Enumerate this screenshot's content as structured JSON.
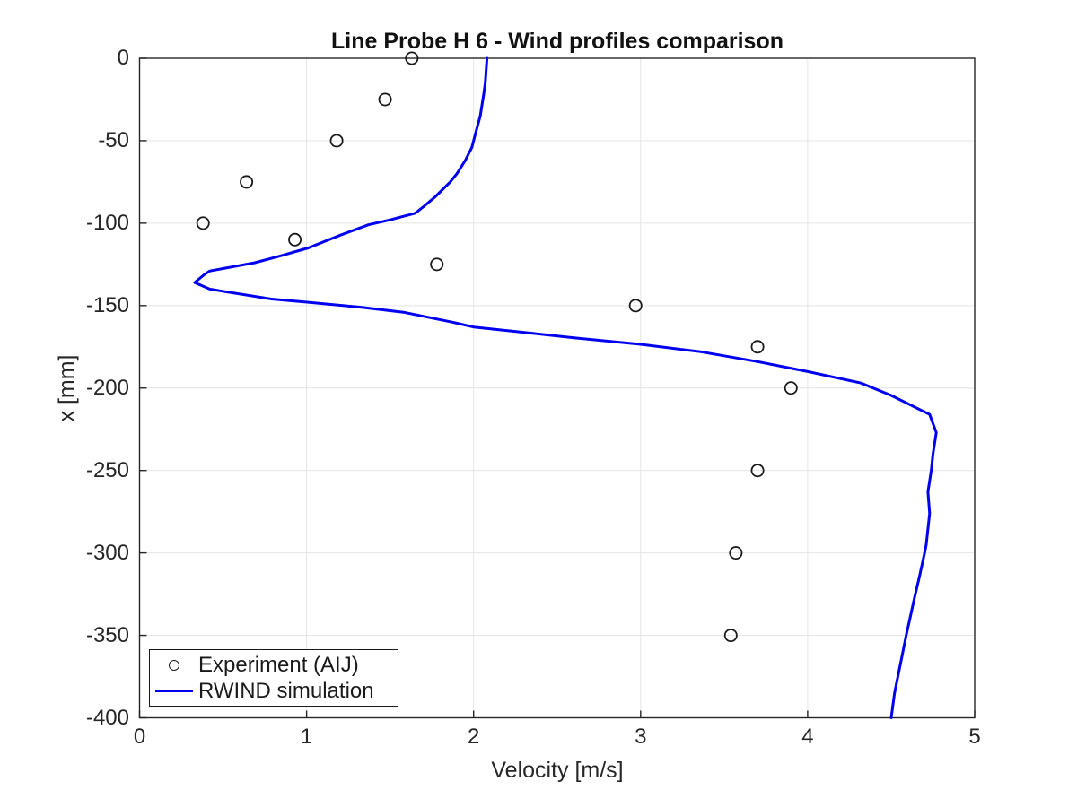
{
  "figure_title": "Line Probe H 6 - Wind profiles comparison",
  "colors": {
    "background": "#ffffff",
    "axis": "#262626",
    "grid": "#e4e4e4",
    "simulation_line": "#0000ee",
    "marker_edge": "#1a1a1a",
    "text": "#262626"
  },
  "chart_data": {
    "type": "line",
    "title": "Line Probe H 6 - Wind profiles comparison",
    "xlabel": "Velocity [m/s]",
    "ylabel": "x [mm]",
    "xlim": [
      0,
      5
    ],
    "ylim": [
      -400,
      0
    ],
    "xticks": [
      0,
      1,
      2,
      3,
      4,
      5
    ],
    "yticks": [
      0,
      -50,
      -100,
      -150,
      -200,
      -250,
      -300,
      -350,
      -400
    ],
    "grid": true,
    "legend_position": "bottom-left",
    "series": [
      {
        "name": "Experiment (AIJ)",
        "style": "scatter",
        "marker": "open-circle",
        "color": "#1a1a1a",
        "points": [
          [
            1.63,
            0
          ],
          [
            1.47,
            -25
          ],
          [
            1.18,
            -50
          ],
          [
            0.64,
            -75
          ],
          [
            0.38,
            -100
          ],
          [
            0.93,
            -110
          ],
          [
            1.78,
            -125
          ],
          [
            2.97,
            -150
          ],
          [
            3.7,
            -175
          ],
          [
            3.9,
            -200
          ],
          [
            3.7,
            -250
          ],
          [
            3.57,
            -300
          ],
          [
            3.54,
            -350
          ]
        ]
      },
      {
        "name": "RWIND simulation",
        "style": "line",
        "color": "#0000ee",
        "points": [
          [
            2.08,
            0
          ],
          [
            2.07,
            -15
          ],
          [
            2.06,
            -22
          ],
          [
            2.04,
            -35
          ],
          [
            2.01,
            -46
          ],
          [
            1.99,
            -54
          ],
          [
            1.95,
            -62
          ],
          [
            1.9,
            -70
          ],
          [
            1.86,
            -75
          ],
          [
            1.77,
            -84
          ],
          [
            1.7,
            -90
          ],
          [
            1.65,
            -94
          ],
          [
            1.5,
            -98
          ],
          [
            1.37,
            -101
          ],
          [
            1.29,
            -104
          ],
          [
            1.21,
            -107
          ],
          [
            1.01,
            -115
          ],
          [
            0.84,
            -120
          ],
          [
            0.69,
            -124
          ],
          [
            0.42,
            -129
          ],
          [
            0.39,
            -131
          ],
          [
            0.33,
            -136
          ],
          [
            0.42,
            -140
          ],
          [
            0.51,
            -141.5
          ],
          [
            0.79,
            -146
          ],
          [
            1.01,
            -148
          ],
          [
            1.33,
            -151
          ],
          [
            1.58,
            -154
          ],
          [
            1.87,
            -160
          ],
          [
            2.0,
            -163
          ],
          [
            2.28,
            -166
          ],
          [
            2.6,
            -169.5
          ],
          [
            3.0,
            -173.5
          ],
          [
            3.36,
            -178
          ],
          [
            3.7,
            -184
          ],
          [
            4.0,
            -190
          ],
          [
            4.32,
            -197
          ],
          [
            4.5,
            -204.5
          ],
          [
            4.73,
            -216
          ],
          [
            4.77,
            -227
          ],
          [
            4.75,
            -240
          ],
          [
            4.74,
            -250
          ],
          [
            4.72,
            -263
          ],
          [
            4.73,
            -276
          ],
          [
            4.71,
            -295
          ],
          [
            4.7,
            -300
          ],
          [
            4.67,
            -314
          ],
          [
            4.64,
            -327
          ],
          [
            4.61,
            -341
          ],
          [
            4.59,
            -350
          ],
          [
            4.55,
            -370
          ],
          [
            4.52,
            -385
          ],
          [
            4.5,
            -400
          ]
        ]
      }
    ]
  },
  "legend": {
    "items": [
      {
        "label": "Experiment (AIJ)"
      },
      {
        "label": "RWIND simulation"
      }
    ]
  }
}
